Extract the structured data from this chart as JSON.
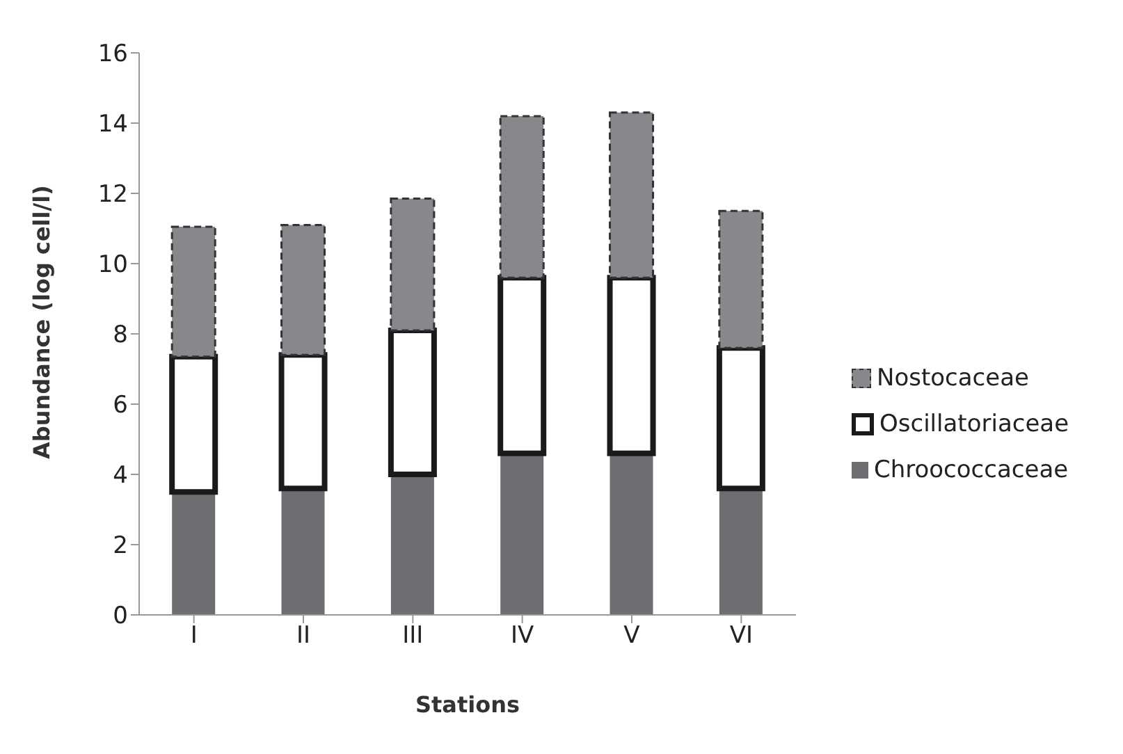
{
  "chart_data": {
    "type": "bar",
    "stacked": true,
    "xlabel": "Stations",
    "ylabel": "Abundance (log cell/l)",
    "categories": [
      "I",
      "II",
      "III",
      "IV",
      "V",
      "VI"
    ],
    "series": [
      {
        "name": "Chroococcaceae",
        "color": "#6d6e71",
        "values": [
          3.5,
          3.6,
          4.0,
          4.6,
          4.6,
          3.6
        ]
      },
      {
        "name": "Oscillatoriaceae",
        "color": "#ffffff",
        "values": [
          3.85,
          3.8,
          4.1,
          5.0,
          5.0,
          4.0
        ]
      },
      {
        "name": "Nostocaceae",
        "color": "#87888b",
        "values": [
          3.7,
          3.7,
          3.75,
          4.6,
          4.7,
          3.9
        ]
      }
    ],
    "ylim": [
      0,
      16
    ],
    "yticks": [
      0,
      2,
      4,
      6,
      8,
      10,
      12,
      14,
      16
    ],
    "grid": false,
    "legend": "right"
  }
}
